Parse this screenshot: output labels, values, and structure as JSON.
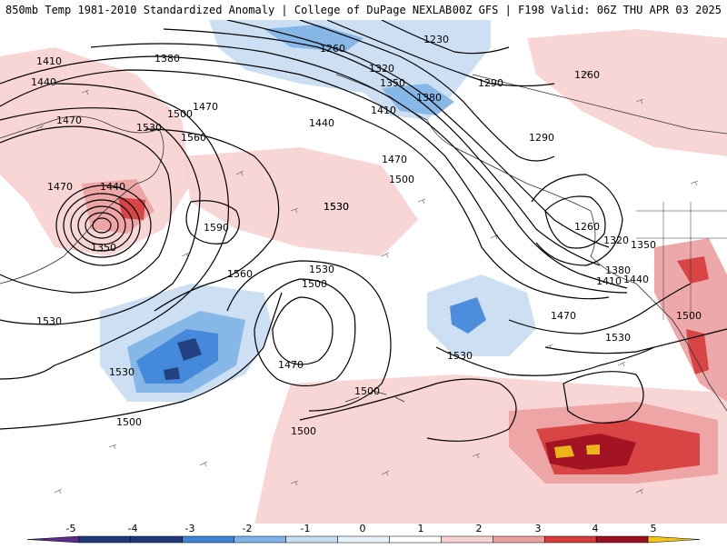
{
  "header": {
    "title_left": "850mb Temp 1981-2010 Standardized Anomaly | College of DuPage NEXLAB",
    "title_right": "00Z GFS | F198 Valid: 06Z THU APR 03 2025"
  },
  "colors": {
    "anom_neg5": "#5a2d8c",
    "anom_neg4": "#1f3a7a",
    "anom_neg3": "#3e85d8",
    "anom_neg2": "#7fb2e6",
    "anom_neg1": "#c6dcf2",
    "anom_pos1": "#f7d2d2",
    "anom_pos2": "#eba0a0",
    "anom_pos3": "#d63a3a",
    "anom_pos4": "#9b1020",
    "anom_pos5": "#f5c518",
    "contour": "#000000",
    "coast": "#333333"
  },
  "colorbar": {
    "ticks": [
      "-5",
      "-4",
      "-3",
      "-2",
      "-1",
      "0",
      "1",
      "2",
      "3",
      "4",
      "5"
    ]
  },
  "contour_labels": [
    "1410",
    "1440",
    "1380",
    "1470",
    "1500",
    "1530",
    "1560",
    "1440",
    "1350",
    "1470",
    "1470",
    "1440",
    "1530",
    "1590",
    "1560",
    "1530",
    "1500",
    "1470",
    "1530",
    "1500",
    "1530",
    "1500",
    "1260",
    "1230",
    "1320",
    "1350",
    "1380",
    "1410",
    "1290",
    "1260",
    "1290",
    "1470",
    "1500",
    "1530",
    "1260",
    "1320",
    "1350",
    "1380",
    "1410",
    "1440",
    "1470",
    "1530",
    "1500",
    "1530",
    "1500"
  ]
}
